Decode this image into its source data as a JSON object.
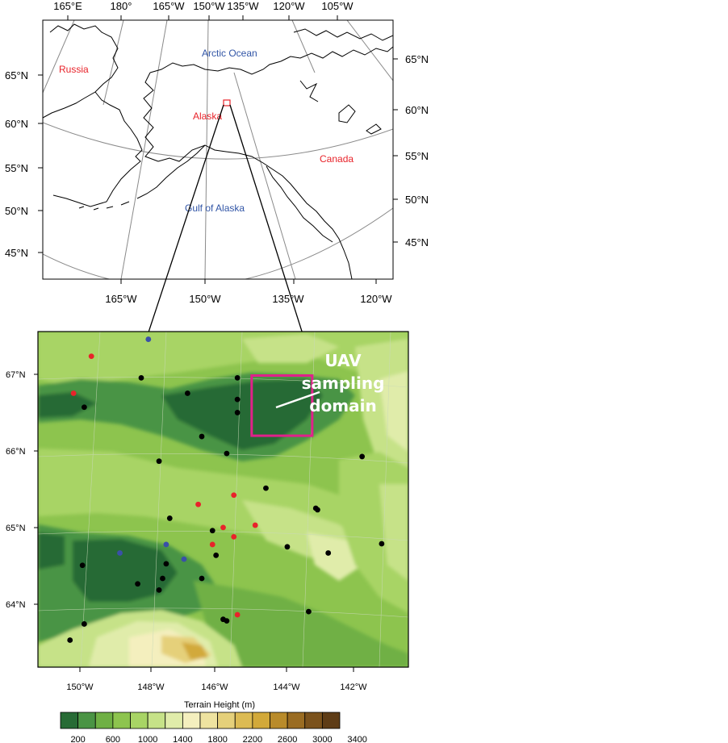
{
  "overview_map": {
    "top_lon_labels": [
      "165°E",
      "180°",
      "165°W",
      "150°W",
      "135°W",
      "120°W",
      "105°W"
    ],
    "bottom_lon_labels": [
      "165°W",
      "150°W",
      "135°W",
      "120°W"
    ],
    "left_lat_labels": [
      "65°N",
      "60°N",
      "55°N",
      "50°N",
      "45°N"
    ],
    "right_lat_labels": [
      "65°N",
      "60°N",
      "55°N",
      "50°N",
      "45°N"
    ],
    "places": [
      {
        "name": "Russia",
        "color": "#e8232a"
      },
      {
        "name": "Arctic Ocean",
        "color": "#3155a6"
      },
      {
        "name": "Alaska",
        "color": "#e8232a"
      },
      {
        "name": "Canada",
        "color": "#e8232a"
      },
      {
        "name": "Gulf of Alaska",
        "color": "#3155a6"
      }
    ]
  },
  "detail_map": {
    "lat_labels": [
      "67°N",
      "66°N",
      "65°N",
      "64°N"
    ],
    "lon_labels": [
      "150°W",
      "148°W",
      "146°W",
      "144°W",
      "142°W"
    ],
    "lat_range": [
      63.15,
      67.5
    ],
    "lon_range": [
      -151.1,
      -140.7
    ],
    "uav_label": [
      "UAV",
      "sampling",
      "domain"
    ],
    "uav_box": {
      "lon": [
        -145.1,
        -143.4
      ],
      "lat": [
        66.15,
        66.93
      ],
      "color": "#e0218a"
    },
    "stations": [
      {
        "lon": -149.6,
        "lat": 67.18,
        "c": "red"
      },
      {
        "lon": -148.0,
        "lat": 67.4,
        "c": "blue"
      },
      {
        "lon": -148.2,
        "lat": 66.9,
        "c": "black"
      },
      {
        "lon": -150.1,
        "lat": 66.7,
        "c": "red"
      },
      {
        "lon": -149.8,
        "lat": 66.52,
        "c": "black"
      },
      {
        "lon": -146.9,
        "lat": 66.7,
        "c": "black"
      },
      {
        "lon": -145.5,
        "lat": 66.9,
        "c": "black"
      },
      {
        "lon": -145.5,
        "lat": 66.62,
        "c": "black"
      },
      {
        "lon": -145.5,
        "lat": 66.45,
        "c": "black"
      },
      {
        "lon": -146.5,
        "lat": 66.14,
        "c": "black"
      },
      {
        "lon": -145.8,
        "lat": 65.92,
        "c": "black"
      },
      {
        "lon": -147.7,
        "lat": 65.82,
        "c": "black"
      },
      {
        "lon": -142.0,
        "lat": 65.88,
        "c": "black"
      },
      {
        "lon": -144.7,
        "lat": 65.47,
        "c": "black"
      },
      {
        "lon": -145.6,
        "lat": 65.38,
        "c": "red"
      },
      {
        "lon": -146.6,
        "lat": 65.26,
        "c": "red"
      },
      {
        "lon": -143.3,
        "lat": 65.21,
        "c": "black"
      },
      {
        "lon": -143.25,
        "lat": 65.19,
        "c": "black"
      },
      {
        "lon": -147.4,
        "lat": 65.08,
        "c": "black"
      },
      {
        "lon": -145.0,
        "lat": 64.99,
        "c": "red"
      },
      {
        "lon": -145.9,
        "lat": 64.96,
        "c": "red"
      },
      {
        "lon": -146.2,
        "lat": 64.92,
        "c": "black"
      },
      {
        "lon": -145.6,
        "lat": 64.84,
        "c": "red"
      },
      {
        "lon": -146.2,
        "lat": 64.74,
        "c": "red"
      },
      {
        "lon": -147.5,
        "lat": 64.74,
        "c": "blue"
      },
      {
        "lon": -144.1,
        "lat": 64.71,
        "c": "black"
      },
      {
        "lon": -148.8,
        "lat": 64.63,
        "c": "blue"
      },
      {
        "lon": -146.1,
        "lat": 64.6,
        "c": "black"
      },
      {
        "lon": -142.95,
        "lat": 64.63,
        "c": "black"
      },
      {
        "lon": -141.45,
        "lat": 64.75,
        "c": "black"
      },
      {
        "lon": -147.0,
        "lat": 64.55,
        "c": "blue"
      },
      {
        "lon": -147.5,
        "lat": 64.49,
        "c": "black"
      },
      {
        "lon": -149.85,
        "lat": 64.47,
        "c": "black"
      },
      {
        "lon": -146.5,
        "lat": 64.3,
        "c": "black"
      },
      {
        "lon": -147.6,
        "lat": 64.3,
        "c": "black"
      },
      {
        "lon": -148.3,
        "lat": 64.23,
        "c": "black"
      },
      {
        "lon": -147.7,
        "lat": 64.15,
        "c": "black"
      },
      {
        "lon": -143.5,
        "lat": 63.87,
        "c": "black"
      },
      {
        "lon": -145.5,
        "lat": 63.83,
        "c": "red"
      },
      {
        "lon": -145.9,
        "lat": 63.77,
        "c": "black"
      },
      {
        "lon": -145.8,
        "lat": 63.75,
        "c": "black"
      },
      {
        "lon": -149.8,
        "lat": 63.71,
        "c": "black"
      },
      {
        "lon": -150.2,
        "lat": 63.5,
        "c": "black"
      }
    ]
  },
  "colorbar": {
    "title": "Terrain Height  (m)",
    "tick_labels": [
      "200",
      "600",
      "1000",
      "1400",
      "1800",
      "2200",
      "2600",
      "3000",
      "3400"
    ],
    "colors": [
      "#276b35",
      "#4a9444",
      "#6fb044",
      "#8dc44e",
      "#a8d465",
      "#c6e288",
      "#e0ecaa",
      "#f4efbe",
      "#eee3a0",
      "#e5d07a",
      "#dcbb53",
      "#d2a93a",
      "#b98b2a",
      "#9a6c22",
      "#7b521c",
      "#5e3c16"
    ]
  }
}
